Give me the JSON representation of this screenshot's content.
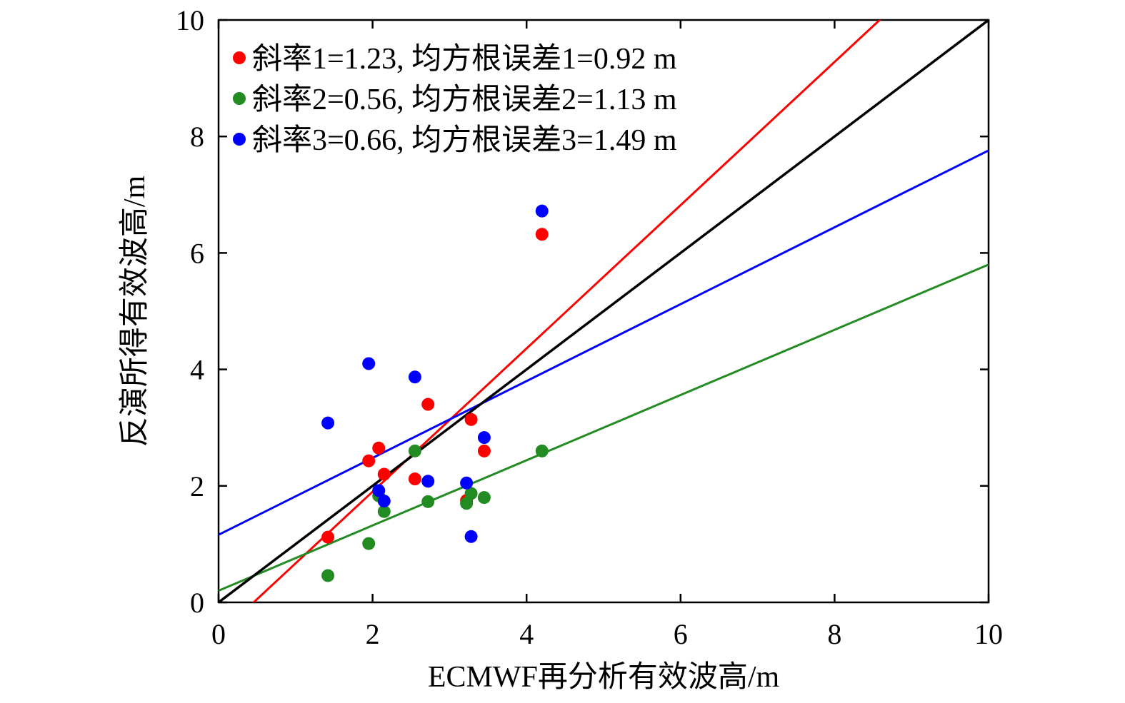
{
  "chart_data": {
    "type": "scatter",
    "title": "",
    "xlabel": "ECMWF再分析有效波高/m",
    "ylabel": "反演所得有效波高/m",
    "xlim": [
      0,
      10
    ],
    "ylim": [
      0,
      10
    ],
    "xticks": [
      0,
      2,
      4,
      6,
      8,
      10
    ],
    "yticks": [
      0,
      2,
      4,
      6,
      8,
      10
    ],
    "grid": false,
    "legend_position": "top-left",
    "series": [
      {
        "name": "斜率1=1.23, 均方根误差1=0.92 m",
        "color": "#ff0000",
        "x": [
          1.42,
          1.95,
          2.08,
          2.15,
          2.55,
          2.72,
          3.22,
          3.28,
          3.45,
          4.2
        ],
        "y": [
          1.12,
          2.43,
          2.65,
          2.2,
          2.12,
          3.4,
          1.75,
          3.14,
          2.6,
          6.32
        ],
        "fit": {
          "slope": 1.23,
          "intercept": -0.56
        }
      },
      {
        "name": "斜率2=0.56, 均方根误差2=1.13 m",
        "color": "#228b22",
        "x": [
          1.42,
          1.95,
          2.08,
          2.15,
          2.55,
          2.72,
          3.22,
          3.28,
          3.45,
          4.2
        ],
        "y": [
          0.46,
          1.01,
          1.83,
          1.56,
          2.6,
          1.73,
          1.7,
          1.87,
          1.8,
          2.6
        ],
        "fit": {
          "slope": 0.56,
          "intercept": 0.2
        }
      },
      {
        "name": "斜率3=0.66, 均方根误差3=1.49 m",
        "color": "#0000ff",
        "x": [
          1.42,
          1.95,
          2.08,
          2.15,
          2.55,
          2.72,
          3.22,
          3.28,
          3.45,
          4.2
        ],
        "y": [
          3.08,
          4.1,
          1.92,
          1.74,
          3.87,
          2.08,
          2.05,
          1.13,
          2.83,
          6.72
        ],
        "fit": {
          "slope": 0.66,
          "intercept": 1.16
        }
      }
    ],
    "reference_line": {
      "color": "#000000",
      "slope": 1,
      "intercept": 0
    }
  }
}
